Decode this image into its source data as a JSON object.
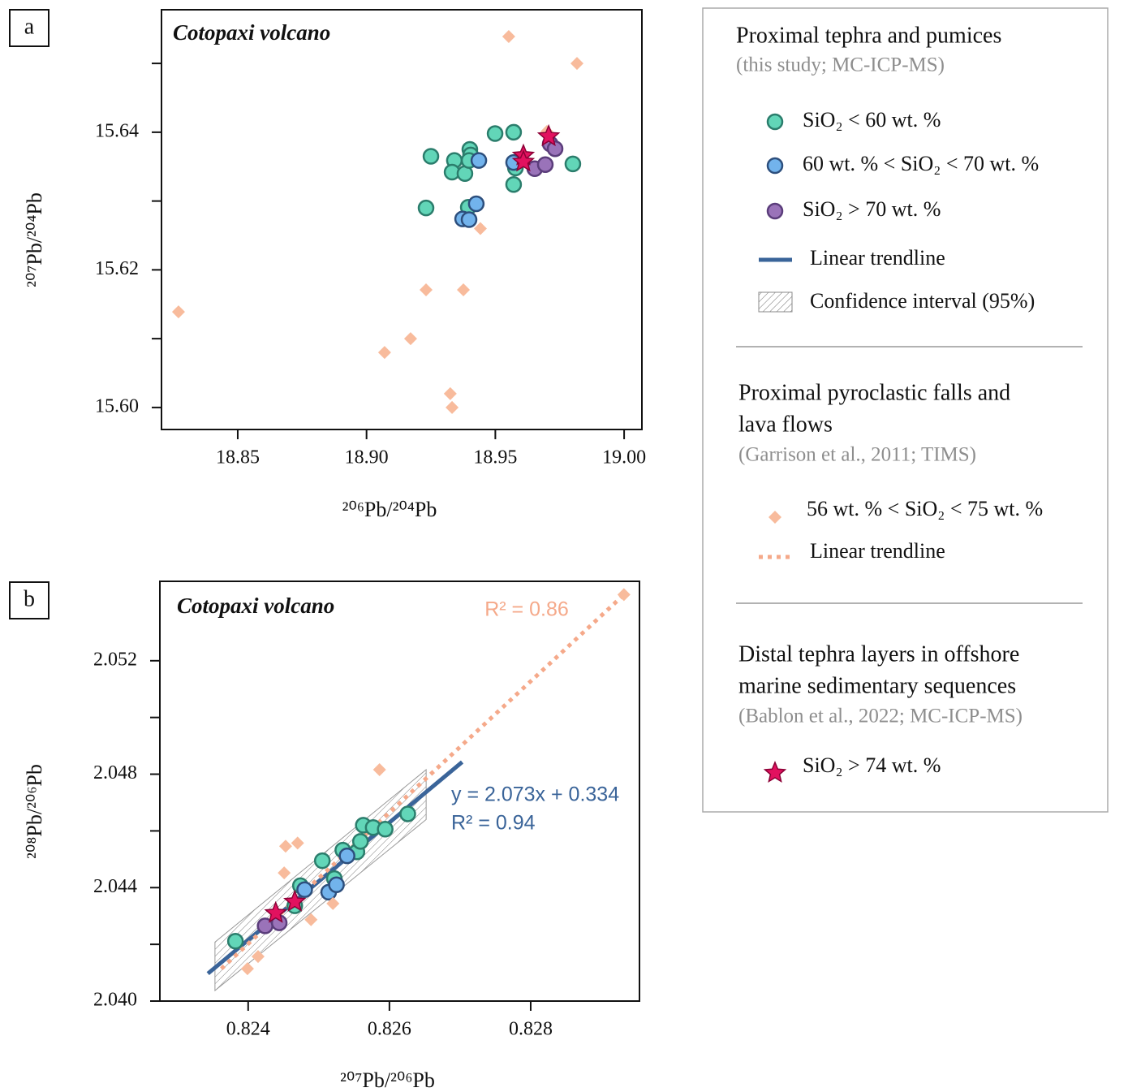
{
  "chart_data": [
    {
      "type": "scatter",
      "panel": "a",
      "annotation": "Cotopaxi volcano",
      "xlabel": "²⁰⁶Pb/²⁰⁴Pb",
      "ylabel": "²⁰⁷Pb/²⁰⁴Pb",
      "xlim": [
        18.8204,
        19.0069
      ],
      "ylim": [
        15.5968,
        15.6578
      ],
      "xticks": [
        18.85,
        {
          "value": 18.9,
          "label": "18.90"
        },
        18.95,
        {
          "value": 19,
          "label": "19.00"
        }
      ],
      "yticks": [
        {
          "value": 15.6,
          "label": "15.60"
        },
        15.62,
        15.64
      ],
      "yticks_minor": [
        15.61,
        15.63,
        15.65
      ],
      "series": [
        {
          "name": "SiO₂ < 60 wt. %",
          "marker": "circle",
          "color": "#62d6b8",
          "edge": "#2b7d6c",
          "x": [
            18.925,
            18.9341,
            18.9332,
            18.9382,
            18.9401,
            18.9404,
            18.9398,
            18.9499,
            18.9571,
            18.9578,
            18.9571,
            18.9801,
            18.9231,
            18.9395
          ],
          "values": [
            15.6365,
            15.6359,
            15.6342,
            15.634,
            15.6375,
            15.6367,
            15.6359,
            15.6398,
            15.64,
            15.6348,
            15.6324,
            15.6354,
            15.629,
            15.6291
          ]
        },
        {
          "name": "60 wt. % < SiO₂ < 70 wt. %",
          "marker": "circle",
          "color": "#72b3ec",
          "edge": "#2d4f7d",
          "x": [
            18.9436,
            18.9571,
            18.9426,
            18.9373,
            18.9398
          ],
          "values": [
            15.6359,
            15.6356,
            15.6296,
            15.6274,
            15.6273
          ]
        },
        {
          "name": "SiO₂ > 70 wt. %",
          "marker": "circle",
          "color": "#9a73b9",
          "edge": "#5b3d7b",
          "x": [
            18.9653,
            18.9694,
            18.9713,
            18.9732
          ],
          "values": [
            15.6347,
            15.6353,
            15.6383,
            15.6376
          ]
        },
        {
          "name": "56 wt. % < SiO₂ < 75 wt. %",
          "marker": "diamond",
          "color": "#f8bb9c",
          "edge": "none",
          "x": [
            18.9552,
            18.9817,
            18.97,
            18.9442,
            18.9231,
            18.9376,
            18.827,
            18.9171,
            18.907,
            18.9325,
            18.9332
          ],
          "values": [
            15.6539,
            15.65,
            15.6401,
            15.626,
            15.6171,
            15.6171,
            15.6139,
            15.61,
            15.608,
            15.602,
            15.6
          ]
        },
        {
          "name": "SiO₂ > 74 wt. %",
          "marker": "star",
          "color": "#e2115f",
          "edge": "#8c0036",
          "x": [
            18.9609,
            18.9707,
            18.9609
          ],
          "values": [
            15.6366,
            15.6394,
            15.6357
          ]
        }
      ]
    },
    {
      "type": "scatter",
      "panel": "b",
      "annotation": "Cotopaxi volcano",
      "xlabel": "²⁰⁷Pb/²⁰⁶Pb",
      "ylabel": "²⁰⁸Pb/²⁰⁶Pb",
      "xlim": [
        0.82275,
        0.82954
      ],
      "ylim": [
        2.04,
        2.0548
      ],
      "xticks": [
        0.824,
        0.826,
        0.828
      ],
      "yticks": [
        {
          "value": 2.04,
          "label": "2.040"
        },
        2.044,
        2.048,
        2.052
      ],
      "yticks_minor": [
        2.042,
        2.046,
        2.05
      ],
      "band": {
        "name": "Confidence interval (95%)",
        "x": [
          0.82353,
          0.82652
        ],
        "upper": [
          2.04208,
          2.04816
        ],
        "lower": [
          2.04037,
          2.0464
        ]
      },
      "trendlines": [
        {
          "name": "Linear trendline",
          "color": "#3a6499",
          "style": "solid",
          "x": [
            0.82343,
            0.82703
          ],
          "values": [
            2.04097,
            2.04843
          ],
          "equation": "y = 2.073x + 0.334",
          "r2": "R² = 0.94"
        },
        {
          "name": "Linear trendline",
          "color": "#f5a98a",
          "style": "dotted",
          "x": [
            0.82362,
            0.82932
          ],
          "values": [
            2.04114,
            2.05433
          ],
          "r2": "R² = 0.86"
        }
      ],
      "series": [
        {
          "name": "SiO₂ < 60 wt. %",
          "marker": "circle",
          "color": "#62d6b8",
          "edge": "#2b7d6c",
          "x": [
            0.82382,
            0.82474,
            0.82466,
            0.82505,
            0.82534,
            0.82554,
            0.82559,
            0.82563,
            0.82577,
            0.82594,
            0.82626,
            0.82522
          ],
          "values": [
            2.04211,
            2.04407,
            2.04336,
            2.04495,
            2.04532,
            2.04526,
            2.04563,
            2.0462,
            2.04612,
            2.04606,
            2.0466,
            2.04432
          ]
        },
        {
          "name": "60 wt. % < SiO₂ < 70 wt. %",
          "marker": "circle",
          "color": "#72b3ec",
          "edge": "#2d4f7d",
          "x": [
            0.8248,
            0.82514,
            0.82525,
            0.8254
          ],
          "values": [
            2.04393,
            2.04384,
            2.0441,
            2.04512
          ]
        },
        {
          "name": "SiO₂ > 70 wt. %",
          "marker": "circle",
          "color": "#9a73b9",
          "edge": "#5b3d7b",
          "x": [
            0.82424,
            0.82444
          ],
          "values": [
            2.04265,
            2.04276
          ]
        },
        {
          "name": "56 wt. % < SiO₂ < 75 wt. %",
          "marker": "diamond",
          "color": "#f8bb9c",
          "edge": "none",
          "x": [
            0.82932,
            0.82586,
            0.82453,
            0.8247,
            0.82451,
            0.82399,
            0.82414,
            0.82489,
            0.8252
          ],
          "values": [
            2.05433,
            2.04816,
            2.04546,
            2.04557,
            2.04452,
            2.04114,
            2.04157,
            2.04287,
            2.04344
          ]
        },
        {
          "name": "SiO₂ > 74 wt. %",
          "marker": "star",
          "color": "#e2115f",
          "edge": "#8c0036",
          "x": [
            0.82439,
            0.82466
          ],
          "values": [
            2.0431,
            2.0435
          ]
        }
      ]
    }
  ],
  "legend": {
    "sections": [
      {
        "title_lines": [
          "Proximal tephra and pumices"
        ],
        "subtitle": "(this study; MC-ICP-MS)"
      },
      {
        "title_lines": [
          "Proximal pyroclastic falls and",
          "lava flows"
        ],
        "subtitle": "(Garrison et al., 2011; TIMS)"
      },
      {
        "title_lines": [
          "Distal tephra layers in offshore",
          "marine sedimentary sequences"
        ],
        "subtitle": "(Bablon et al., 2022; MC-ICP-MS)"
      }
    ]
  }
}
